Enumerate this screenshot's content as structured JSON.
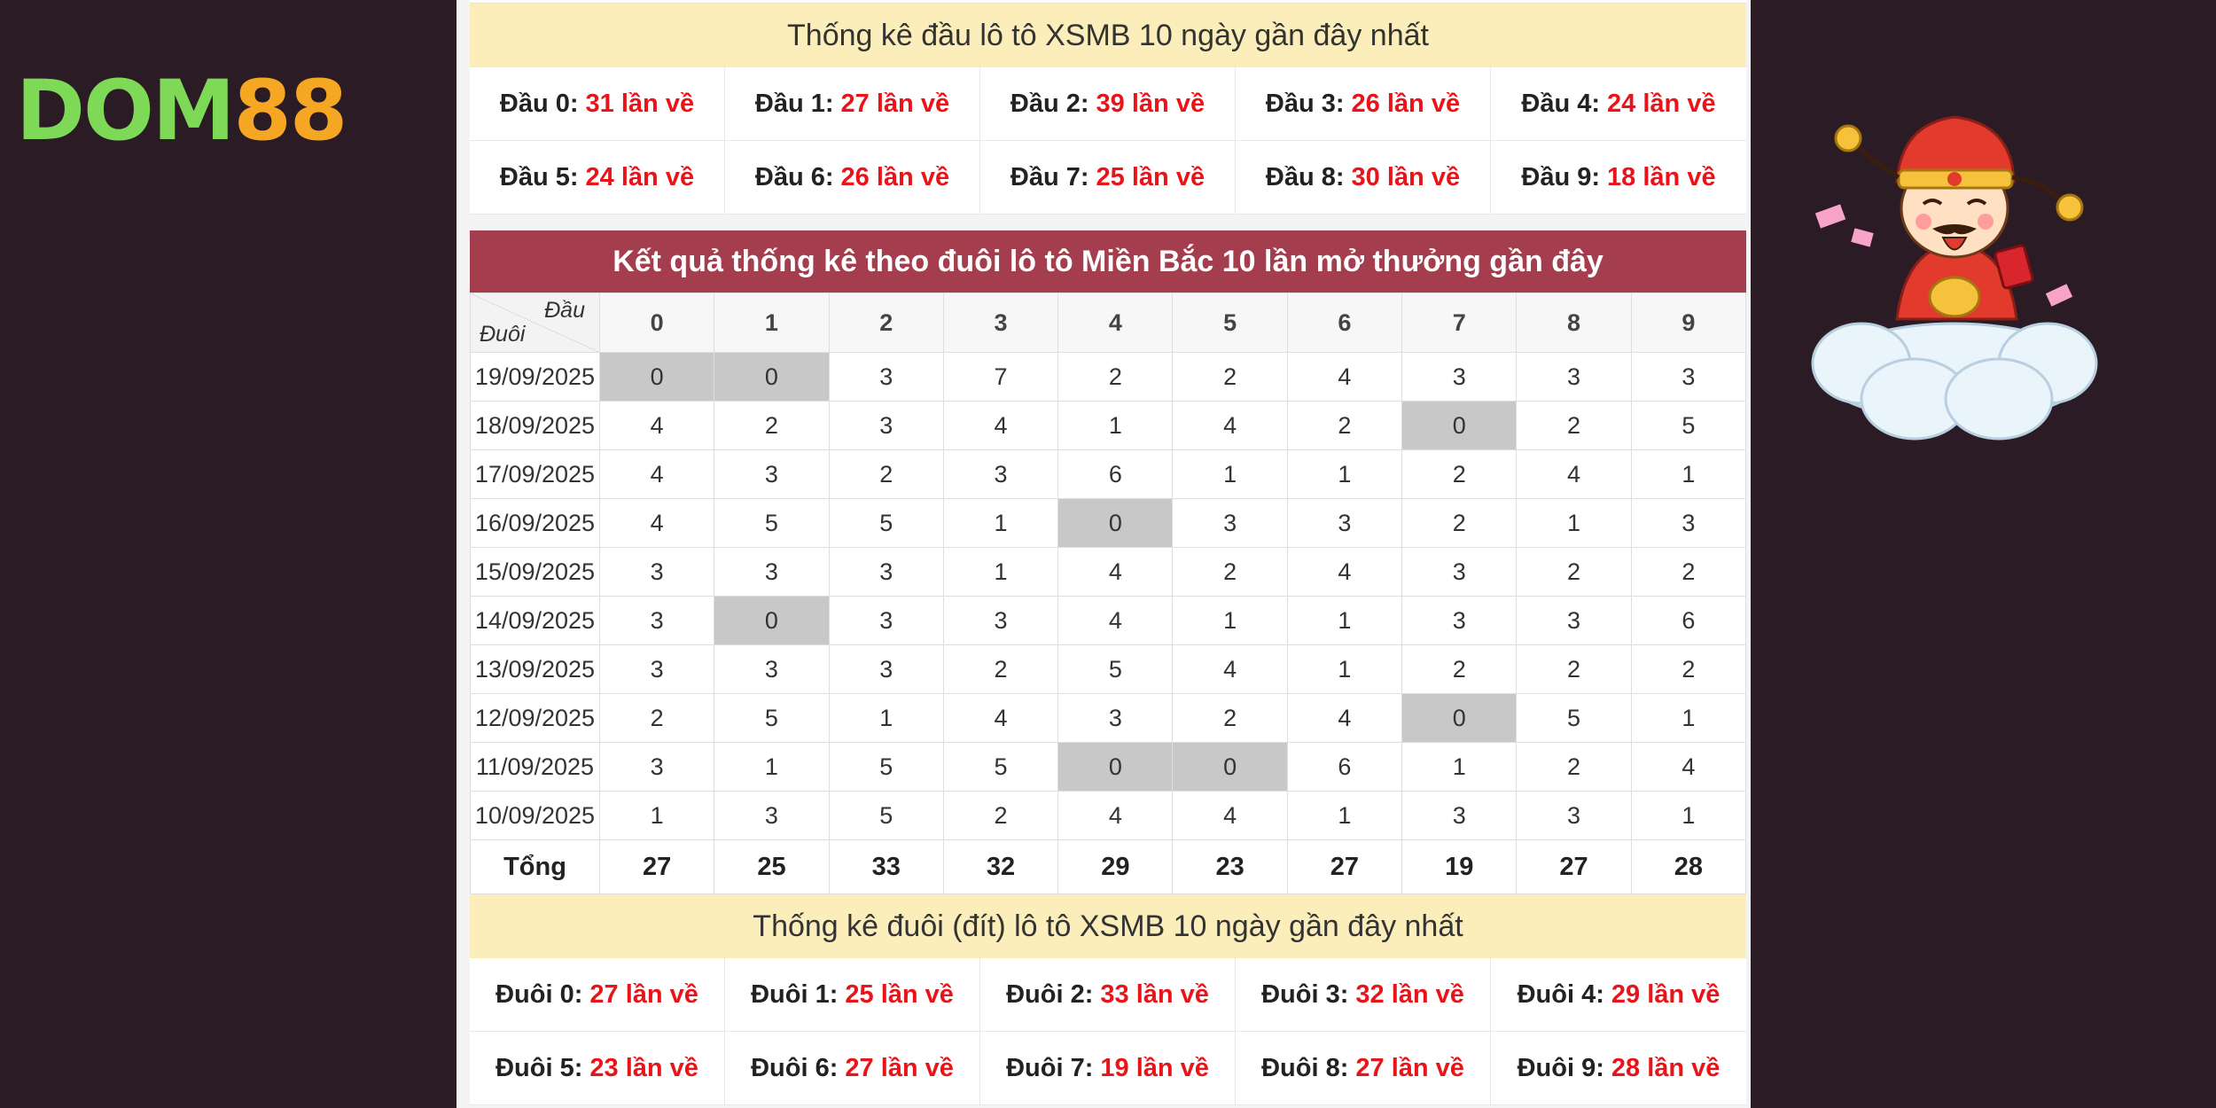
{
  "logo": {
    "part1": "DOM",
    "part2": "88"
  },
  "head_stats": {
    "title": "Thống kê đầu lô tô XSMB 10 ngày gần đây nhất",
    "items": [
      {
        "label": "Đầu 0:",
        "value": "31 lần về"
      },
      {
        "label": "Đầu 1:",
        "value": "27 lần về"
      },
      {
        "label": "Đầu 2:",
        "value": "39 lần về"
      },
      {
        "label": "Đầu 3:",
        "value": "26 lần về"
      },
      {
        "label": "Đầu 4:",
        "value": "24 lần về"
      },
      {
        "label": "Đầu 5:",
        "value": "24 lần về"
      },
      {
        "label": "Đầu 6:",
        "value": "26 lần về"
      },
      {
        "label": "Đầu 7:",
        "value": "25 lần về"
      },
      {
        "label": "Đầu 8:",
        "value": "30 lần về"
      },
      {
        "label": "Đầu 9:",
        "value": "18 lần về"
      }
    ]
  },
  "main_table": {
    "title": "Kết quả thống kê theo đuôi lô tô Miền Bắc 10 lần mở thưởng gần đây",
    "corner_head": "Đầu",
    "corner_tail": "Đuôi",
    "columns": [
      "0",
      "1",
      "2",
      "3",
      "4",
      "5",
      "6",
      "7",
      "8",
      "9"
    ],
    "rows": [
      {
        "date": "19/09/2025",
        "values": [
          "0",
          "0",
          "3",
          "7",
          "2",
          "2",
          "4",
          "3",
          "3",
          "3"
        ]
      },
      {
        "date": "18/09/2025",
        "values": [
          "4",
          "2",
          "3",
          "4",
          "1",
          "4",
          "2",
          "0",
          "2",
          "5"
        ]
      },
      {
        "date": "17/09/2025",
        "values": [
          "4",
          "3",
          "2",
          "3",
          "6",
          "1",
          "1",
          "2",
          "4",
          "1"
        ]
      },
      {
        "date": "16/09/2025",
        "values": [
          "4",
          "5",
          "5",
          "1",
          "0",
          "3",
          "3",
          "2",
          "1",
          "3"
        ]
      },
      {
        "date": "15/09/2025",
        "values": [
          "3",
          "3",
          "3",
          "1",
          "4",
          "2",
          "4",
          "3",
          "2",
          "2"
        ]
      },
      {
        "date": "14/09/2025",
        "values": [
          "3",
          "0",
          "3",
          "3",
          "4",
          "1",
          "1",
          "3",
          "3",
          "6"
        ]
      },
      {
        "date": "13/09/2025",
        "values": [
          "3",
          "3",
          "3",
          "2",
          "5",
          "4",
          "1",
          "2",
          "2",
          "2"
        ]
      },
      {
        "date": "12/09/2025",
        "values": [
          "2",
          "5",
          "1",
          "4",
          "3",
          "2",
          "4",
          "0",
          "5",
          "1"
        ]
      },
      {
        "date": "11/09/2025",
        "values": [
          "3",
          "1",
          "5",
          "5",
          "0",
          "0",
          "6",
          "1",
          "2",
          "4"
        ]
      },
      {
        "date": "10/09/2025",
        "values": [
          "1",
          "3",
          "5",
          "2",
          "4",
          "4",
          "1",
          "3",
          "3",
          "1"
        ]
      }
    ],
    "total_label": "Tổng",
    "totals": [
      "27",
      "25",
      "33",
      "32",
      "29",
      "23",
      "27",
      "19",
      "27",
      "28"
    ]
  },
  "tail_stats": {
    "title": "Thống kê đuôi (đít) lô tô XSMB 10 ngày gần đây nhất",
    "items": [
      {
        "label": "Đuôi 0:",
        "value": "27 lần về"
      },
      {
        "label": "Đuôi 1:",
        "value": "25 lần về"
      },
      {
        "label": "Đuôi 2:",
        "value": "33 lần về"
      },
      {
        "label": "Đuôi 3:",
        "value": "32 lần về"
      },
      {
        "label": "Đuôi 4:",
        "value": "29 lần về"
      },
      {
        "label": "Đuôi 5:",
        "value": "23 lần về"
      },
      {
        "label": "Đuôi 6:",
        "value": "27 lần về"
      },
      {
        "label": "Đuôi 7:",
        "value": "19 lần về"
      },
      {
        "label": "Đuôi 8:",
        "value": "27 lần về"
      },
      {
        "label": "Đuôi 9:",
        "value": "28 lần về"
      }
    ]
  },
  "colors": {
    "background": "#2b1b25",
    "header_bar": "#a43d4d",
    "title_band": "#fbeeba",
    "highlight_value": "#e8141a",
    "zero_cell": "#c8c8c8"
  },
  "icons": [
    "dom88-logo",
    "god-of-wealth-mascot"
  ]
}
